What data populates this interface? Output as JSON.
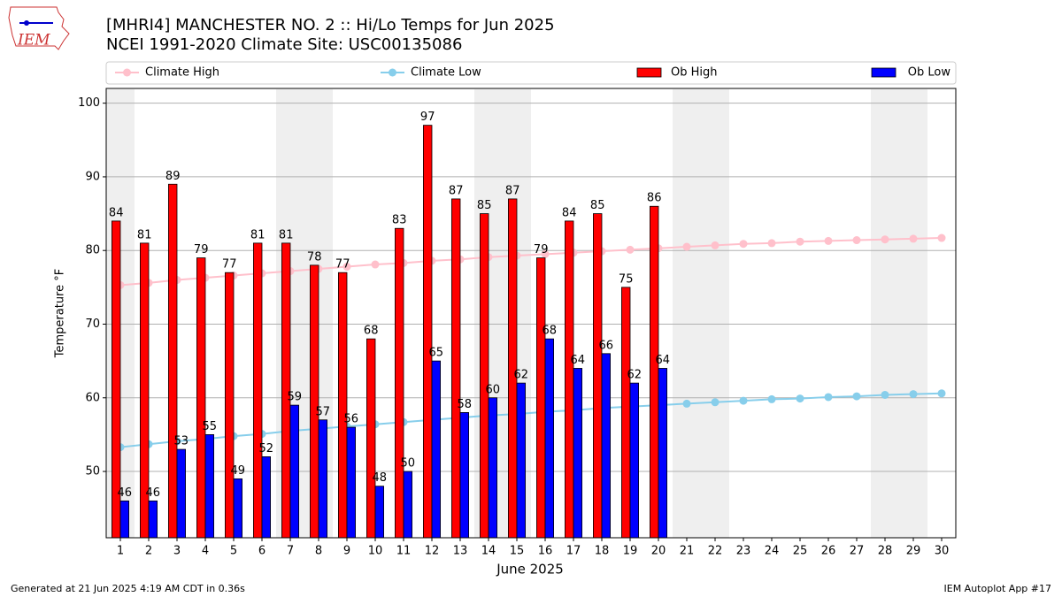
{
  "chart_data": {
    "type": "bar",
    "title": "[MHRI4] MANCHESTER NO. 2 :: Hi/Lo Temps for Jun 2025",
    "subtitle": "NCEI 1991-2020 Climate Site: USC00135086",
    "logo_text": "IEM",
    "xlabel": "June 2025",
    "ylabel": "Temperature °F",
    "footer_left": "Generated at 21 Jun 2025 4:19 AM CDT in 0.36s",
    "footer_right": "IEM Autoplot App #17",
    "categories": [
      "1",
      "2",
      "3",
      "4",
      "5",
      "6",
      "7",
      "8",
      "9",
      "10",
      "11",
      "12",
      "13",
      "14",
      "15",
      "16",
      "17",
      "18",
      "19",
      "20",
      "21",
      "22",
      "23",
      "24",
      "25",
      "26",
      "27",
      "28",
      "29",
      "30"
    ],
    "ylim": [
      41,
      102
    ],
    "yticks": [
      50,
      60,
      70,
      80,
      90,
      100
    ],
    "grid": true,
    "series": [
      {
        "name": "Climate High",
        "kind": "line",
        "color": "#ffc0cb",
        "values": [
          75.3,
          75.6,
          76.0,
          76.3,
          76.6,
          76.9,
          77.2,
          77.5,
          77.8,
          78.1,
          78.3,
          78.6,
          78.8,
          79.1,
          79.3,
          79.5,
          79.7,
          79.9,
          80.1,
          80.3,
          80.5,
          80.7,
          80.9,
          81.0,
          81.2,
          81.3,
          81.4,
          81.5,
          81.6,
          81.7
        ]
      },
      {
        "name": "Climate Low",
        "kind": "line",
        "color": "#87ceeb",
        "values": [
          53.3,
          53.7,
          54.1,
          54.4,
          54.8,
          55.1,
          55.5,
          55.8,
          56.1,
          56.4,
          56.7,
          57.0,
          57.3,
          57.6,
          57.8,
          58.1,
          58.3,
          58.6,
          58.8,
          59.0,
          59.2,
          59.4,
          59.6,
          59.8,
          59.9,
          60.1,
          60.2,
          60.4,
          60.5,
          60.6
        ]
      },
      {
        "name": "Ob High",
        "kind": "bar",
        "color": "#ff0000",
        "values": [
          84,
          81,
          89,
          79,
          77,
          81,
          81,
          78,
          77,
          68,
          83,
          97,
          87,
          85,
          87,
          79,
          84,
          85,
          75,
          86,
          null,
          null,
          null,
          null,
          null,
          null,
          null,
          null,
          null,
          null
        ]
      },
      {
        "name": "Ob Low",
        "kind": "bar",
        "color": "#0000ff",
        "values": [
          46,
          46,
          53,
          55,
          49,
          52,
          59,
          57,
          56,
          48,
          50,
          65,
          58,
          60,
          62,
          68,
          64,
          66,
          62,
          64,
          null,
          null,
          null,
          null,
          null,
          null,
          null,
          null,
          null,
          null
        ]
      }
    ]
  }
}
